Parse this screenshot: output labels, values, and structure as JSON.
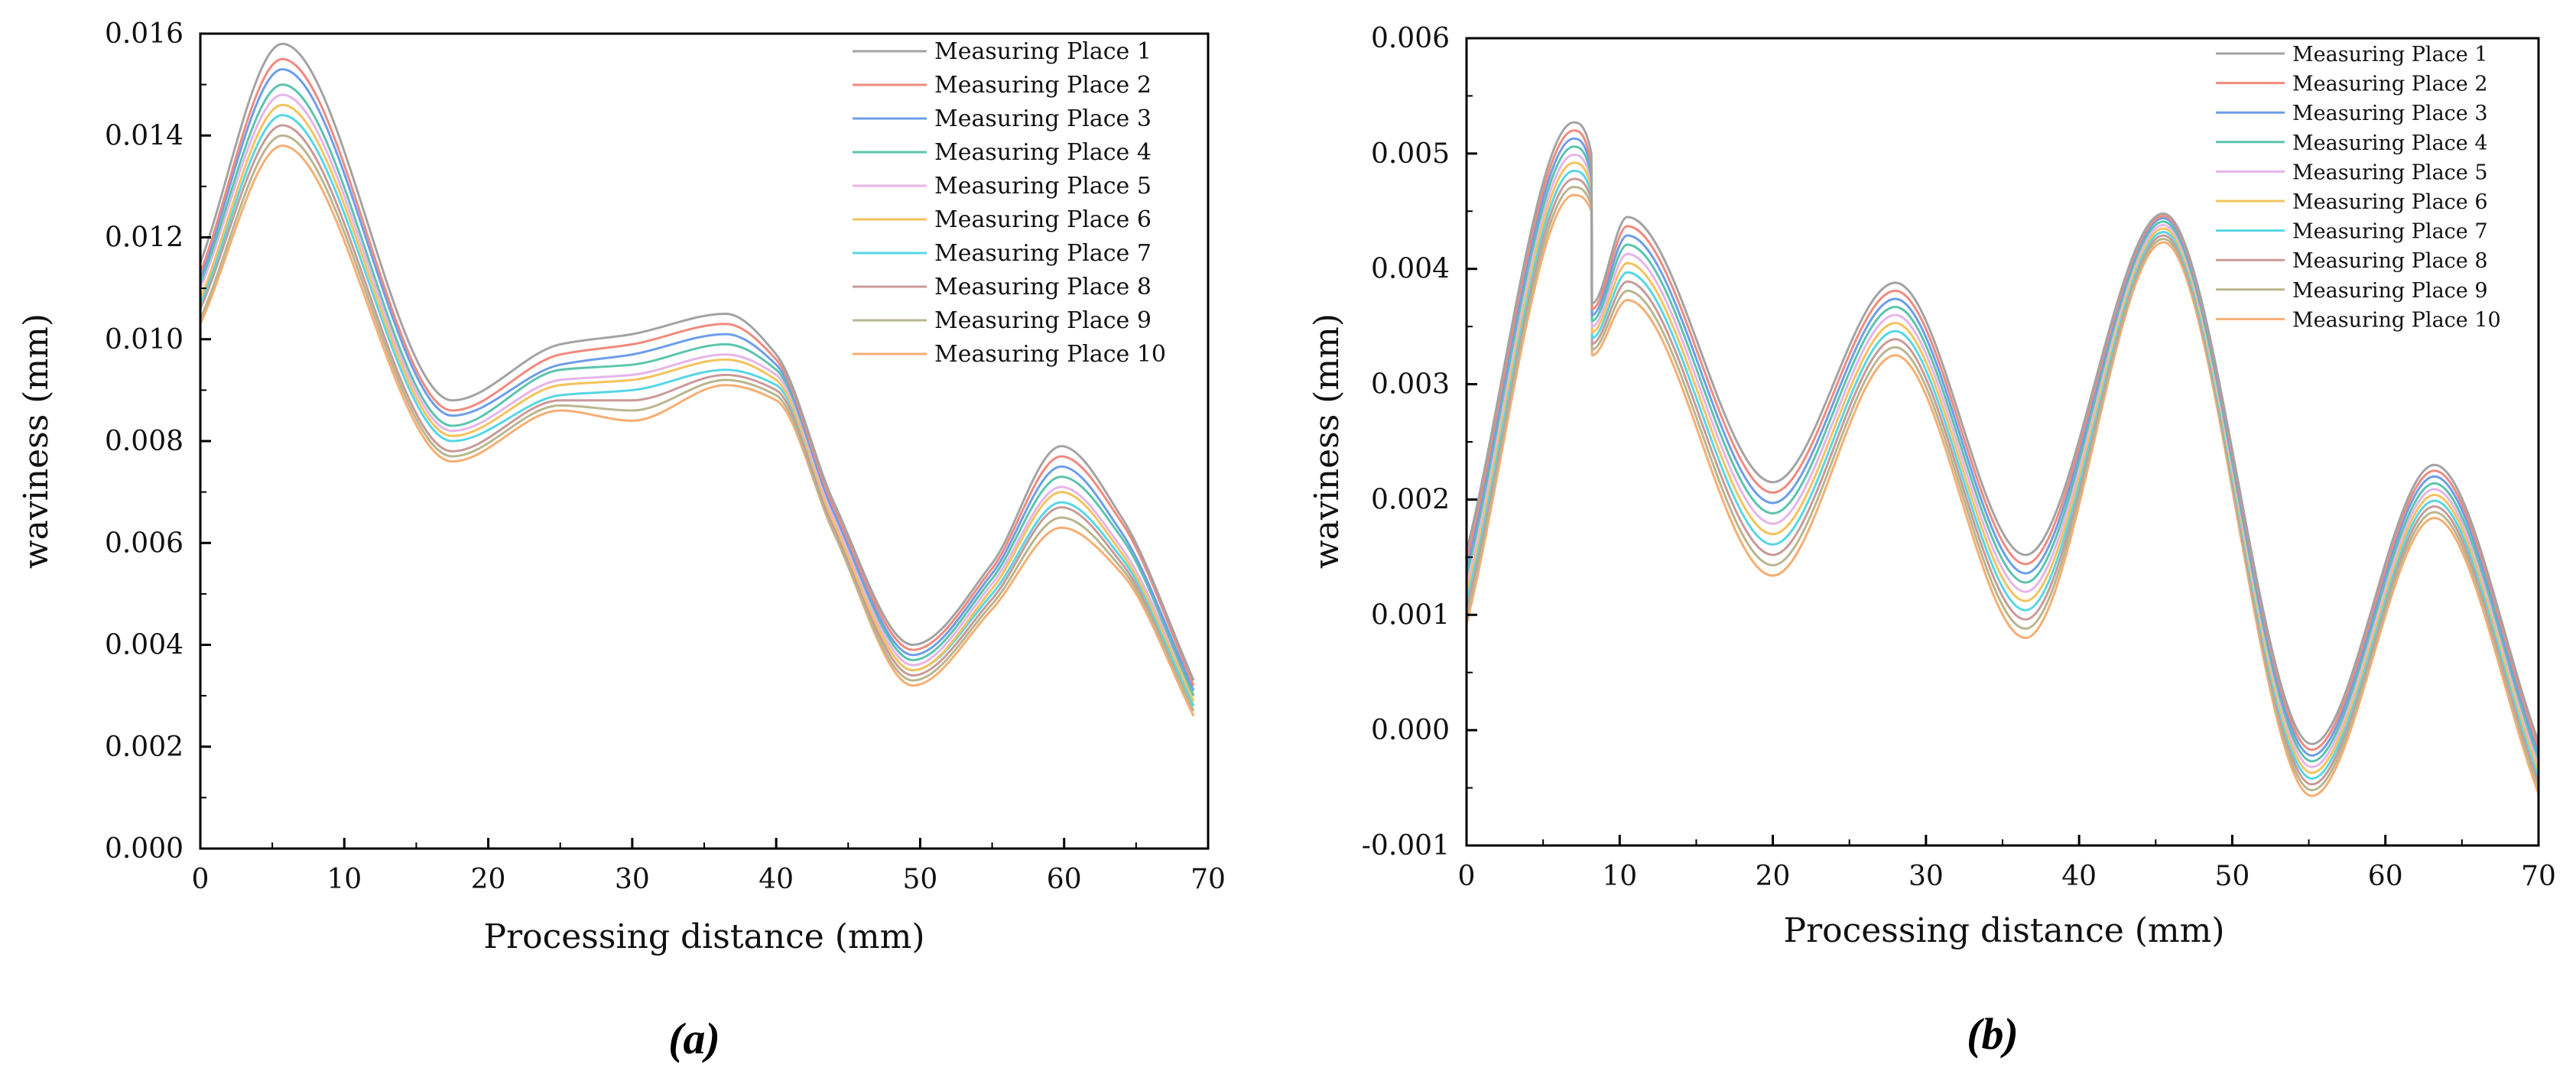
{
  "colors": [
    "#a3a3a3",
    "#f08a7d",
    "#6d9ee8",
    "#5cc4ad",
    "#e6b4ea",
    "#f3c35d",
    "#57d6e6",
    "#c99a98",
    "#b8b68e",
    "#f6ae73"
  ],
  "chart_data": [
    {
      "type": "line",
      "label": "(a)",
      "xlabel": "Processing distance (mm)",
      "ylabel": "waviness (mm)",
      "xlim": [
        0,
        70
      ],
      "ylim": [
        0,
        0.016
      ],
      "xticks": [
        0,
        10,
        20,
        30,
        40,
        50,
        60,
        70
      ],
      "xtick_labels": [
        "0",
        "10",
        "20",
        "30",
        "40",
        "50",
        "60",
        "70"
      ],
      "yticks": [
        0,
        0.002,
        0.004,
        0.006,
        0.008,
        0.01,
        0.012,
        0.014,
        0.016
      ],
      "ytick_labels": [
        "0.000",
        "0.002",
        "0.004",
        "0.006",
        "0.008",
        "0.010",
        "0.012",
        "0.014",
        "0.016"
      ],
      "legend_position": "top-right",
      "x": [
        0,
        5.7,
        17.5,
        25,
        30,
        36.5,
        40,
        44,
        49.5,
        55,
        59.8,
        64,
        69
      ],
      "series": [
        {
          "name": "Measuring Place 1",
          "values": [
            0.0115,
            0.0158,
            0.0088,
            0.0099,
            0.0101,
            0.0105,
            0.0097,
            0.0068,
            0.004,
            0.0056,
            0.0079,
            0.0065,
            0.0033
          ]
        },
        {
          "name": "Measuring Place 2",
          "values": [
            0.0113,
            0.0155,
            0.0086,
            0.0097,
            0.0099,
            0.0103,
            0.0096,
            0.0067,
            0.0039,
            0.0055,
            0.0077,
            0.0064,
            0.0032
          ]
        },
        {
          "name": "Measuring Place 3",
          "values": [
            0.0112,
            0.0153,
            0.0085,
            0.0095,
            0.0097,
            0.0101,
            0.0095,
            0.0066,
            0.0038,
            0.0054,
            0.0075,
            0.0062,
            0.0031
          ]
        },
        {
          "name": "Measuring Place 4",
          "values": [
            0.0111,
            0.015,
            0.0083,
            0.0094,
            0.0095,
            0.0099,
            0.0094,
            0.0066,
            0.0037,
            0.0053,
            0.0073,
            0.0061,
            0.003
          ]
        },
        {
          "name": "Measuring Place 5",
          "values": [
            0.011,
            0.0148,
            0.0082,
            0.0092,
            0.0093,
            0.0097,
            0.0093,
            0.0065,
            0.0036,
            0.0052,
            0.0071,
            0.0059,
            0.003
          ]
        },
        {
          "name": "Measuring Place 6",
          "values": [
            0.0108,
            0.0146,
            0.0081,
            0.0091,
            0.0092,
            0.0096,
            0.0092,
            0.0064,
            0.0035,
            0.0051,
            0.007,
            0.0058,
            0.0029
          ]
        },
        {
          "name": "Measuring Place 7",
          "values": [
            0.0107,
            0.0144,
            0.008,
            0.0089,
            0.009,
            0.0094,
            0.0091,
            0.0064,
            0.0035,
            0.005,
            0.0068,
            0.0057,
            0.0028
          ]
        },
        {
          "name": "Measuring Place 8",
          "values": [
            0.0106,
            0.0142,
            0.0078,
            0.0088,
            0.0088,
            0.0093,
            0.009,
            0.0063,
            0.0034,
            0.0049,
            0.0067,
            0.0056,
            0.0028
          ]
        },
        {
          "name": "Measuring Place 9",
          "values": [
            0.0104,
            0.014,
            0.0077,
            0.0087,
            0.0086,
            0.0092,
            0.0089,
            0.0062,
            0.0033,
            0.0048,
            0.0065,
            0.0055,
            0.0027
          ]
        },
        {
          "name": "Measuring Place 10",
          "values": [
            0.0103,
            0.0138,
            0.0076,
            0.0086,
            0.0084,
            0.0091,
            0.0088,
            0.0062,
            0.0032,
            0.0047,
            0.0063,
            0.0054,
            0.0026
          ]
        }
      ]
    },
    {
      "type": "line",
      "label": "(b)",
      "xlabel": "Processing distance (mm)",
      "ylabel": "waviness (mm)",
      "xlim": [
        0,
        70
      ],
      "ylim": [
        -0.001,
        0.006
      ],
      "xticks": [
        0,
        10,
        20,
        30,
        40,
        50,
        60,
        70
      ],
      "xtick_labels": [
        "0",
        "10",
        "20",
        "30",
        "40",
        "50",
        "60",
        "70"
      ],
      "yticks": [
        -0.001,
        0,
        0.001,
        0.002,
        0.003,
        0.004,
        0.005,
        0.006
      ],
      "ytick_labels": [
        "-0.001",
        "0.000",
        "0.001",
        "0.002",
        "0.003",
        "0.004",
        "0.005",
        "0.006"
      ],
      "legend_position": "top-right",
      "x": [
        0,
        7,
        8.15,
        8.2,
        10.5,
        20,
        28,
        36.5,
        45.5,
        55.2,
        63.2,
        70
      ],
      "series": [
        {
          "name": "Measuring Place 1",
          "values": [
            0.00155,
            0.00527,
            0.005,
            0.0037,
            0.00445,
            0.00215,
            0.00388,
            0.00152,
            0.00448,
            -0.00012,
            0.0023,
            -0.0001
          ]
        },
        {
          "name": "Measuring Place 2",
          "values": [
            0.00148,
            0.0052,
            0.0049,
            0.00365,
            0.00437,
            0.00206,
            0.00381,
            0.00144,
            0.00446,
            -0.00017,
            0.00225,
            -0.00015
          ]
        },
        {
          "name": "Measuring Place 3",
          "values": [
            0.00141,
            0.00513,
            0.00485,
            0.0036,
            0.00429,
            0.00197,
            0.00374,
            0.00136,
            0.00444,
            -0.00022,
            0.0022,
            -0.0002
          ]
        },
        {
          "name": "Measuring Place 4",
          "values": [
            0.00134,
            0.00506,
            0.0048,
            0.00355,
            0.00421,
            0.00188,
            0.00367,
            0.00128,
            0.00441,
            -0.00027,
            0.00214,
            -0.00025
          ]
        },
        {
          "name": "Measuring Place 5",
          "values": [
            0.00127,
            0.00499,
            0.00475,
            0.0035,
            0.00413,
            0.00179,
            0.0036,
            0.0012,
            0.00438,
            -0.00032,
            0.00209,
            -0.0003
          ]
        },
        {
          "name": "Measuring Place 6",
          "values": [
            0.0012,
            0.00492,
            0.0047,
            0.00345,
            0.00405,
            0.0017,
            0.00353,
            0.00112,
            0.00435,
            -0.00037,
            0.00204,
            -0.00035
          ]
        },
        {
          "name": "Measuring Place 7",
          "values": [
            0.00113,
            0.00485,
            0.00465,
            0.0034,
            0.00397,
            0.00161,
            0.00346,
            0.00104,
            0.00432,
            -0.00042,
            0.00199,
            -0.0004
          ]
        },
        {
          "name": "Measuring Place 8",
          "values": [
            0.00106,
            0.00478,
            0.0046,
            0.00335,
            0.00389,
            0.00152,
            0.00339,
            0.00096,
            0.00429,
            -0.00047,
            0.00194,
            -0.00045
          ]
        },
        {
          "name": "Measuring Place 9",
          "values": [
            0.00099,
            0.00471,
            0.00455,
            0.0033,
            0.00381,
            0.00143,
            0.00332,
            0.00088,
            0.00426,
            -0.00052,
            0.00189,
            -0.0005
          ]
        },
        {
          "name": "Measuring Place 10",
          "values": [
            0.00092,
            0.00464,
            0.0045,
            0.00325,
            0.00373,
            0.00134,
            0.00325,
            0.0008,
            0.00423,
            -0.00057,
            0.00184,
            -0.00055
          ]
        }
      ]
    }
  ]
}
